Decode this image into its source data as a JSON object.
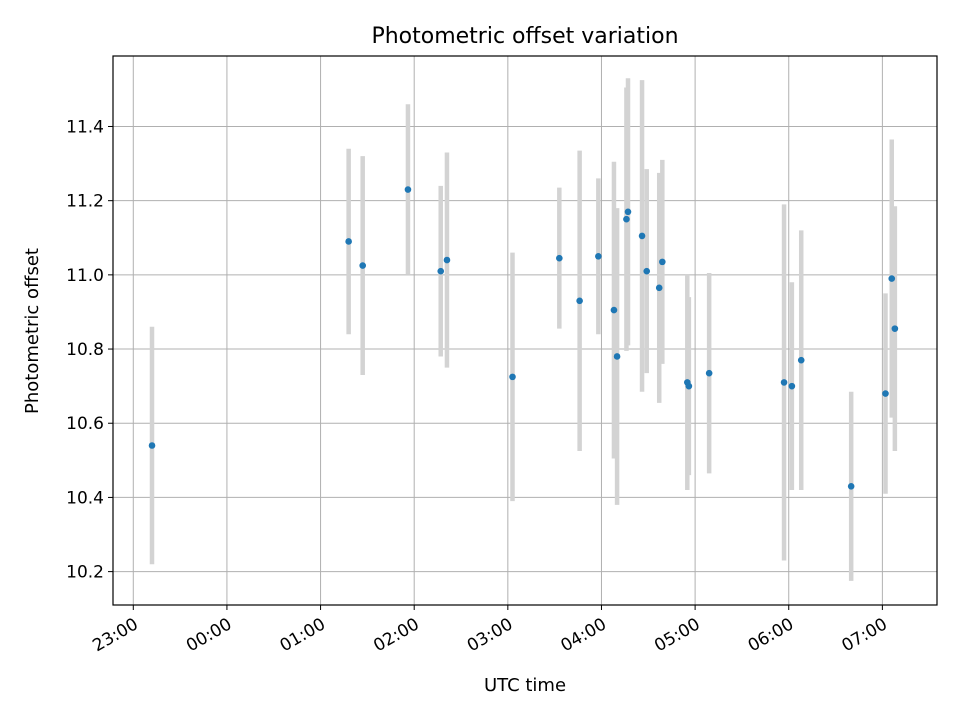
{
  "chart_data": {
    "type": "scatter",
    "title": "Photometric offset variation",
    "xlabel": "UTC time",
    "ylabel": "Photometric offset",
    "xlim": [
      "22:47",
      "07:35"
    ],
    "ylim": [
      10.11,
      11.59
    ],
    "x_tick_labels": [
      "23:00",
      "00:00",
      "01:00",
      "02:00",
      "03:00",
      "04:00",
      "05:00",
      "06:00",
      "07:00"
    ],
    "y_ticks": [
      10.2,
      10.4,
      10.6,
      10.8,
      11.0,
      11.2,
      11.4
    ],
    "y_tick_labels": [
      "10.2",
      "10.4",
      "10.6",
      "10.8",
      "11.0",
      "11.2",
      "11.4"
    ],
    "grid": true,
    "colors": {
      "point": "#1f77b4",
      "errorbar": "#d3d3d3",
      "grid": "#b0b0b0"
    },
    "points": [
      {
        "time": "23:12",
        "y": 10.54,
        "err": 0.32
      },
      {
        "time": "01:18",
        "y": 11.09,
        "err": 0.25
      },
      {
        "time": "01:27",
        "y": 11.025,
        "err": 0.295
      },
      {
        "time": "01:56",
        "y": 11.23,
        "err": 0.23
      },
      {
        "time": "02:17",
        "y": 11.01,
        "err": 0.23
      },
      {
        "time": "02:21",
        "y": 11.04,
        "err": 0.29
      },
      {
        "time": "03:03",
        "y": 10.725,
        "err": 0.335
      },
      {
        "time": "03:33",
        "y": 11.045,
        "err": 0.19
      },
      {
        "time": "03:46",
        "y": 10.93,
        "err": 0.405
      },
      {
        "time": "03:58",
        "y": 11.05,
        "err": 0.21
      },
      {
        "time": "04:08",
        "y": 10.905,
        "err": 0.4
      },
      {
        "time": "04:10",
        "y": 10.78,
        "err": 0.4
      },
      {
        "time": "04:16",
        "y": 11.15,
        "err": 0.355
      },
      {
        "time": "04:17",
        "y": 11.17,
        "err": 0.36
      },
      {
        "time": "04:26",
        "y": 11.105,
        "err": 0.42
      },
      {
        "time": "04:29",
        "y": 11.01,
        "err": 0.275
      },
      {
        "time": "04:37",
        "y": 10.965,
        "err": 0.31
      },
      {
        "time": "04:39",
        "y": 11.035,
        "err": 0.275
      },
      {
        "time": "04:55",
        "y": 10.71,
        "err": 0.29
      },
      {
        "time": "04:56",
        "y": 10.7,
        "err": 0.24
      },
      {
        "time": "05:09",
        "y": 10.735,
        "err": 0.27
      },
      {
        "time": "05:57",
        "y": 10.71,
        "err": 0.48
      },
      {
        "time": "06:02",
        "y": 10.7,
        "err": 0.28
      },
      {
        "time": "06:08",
        "y": 10.77,
        "err": 0.35
      },
      {
        "time": "06:40",
        "y": 10.43,
        "err": 0.255
      },
      {
        "time": "07:02",
        "y": 10.68,
        "err": 0.27
      },
      {
        "time": "07:06",
        "y": 10.99,
        "err": 0.375
      },
      {
        "time": "07:08",
        "y": 10.855,
        "err": 0.33
      }
    ]
  }
}
